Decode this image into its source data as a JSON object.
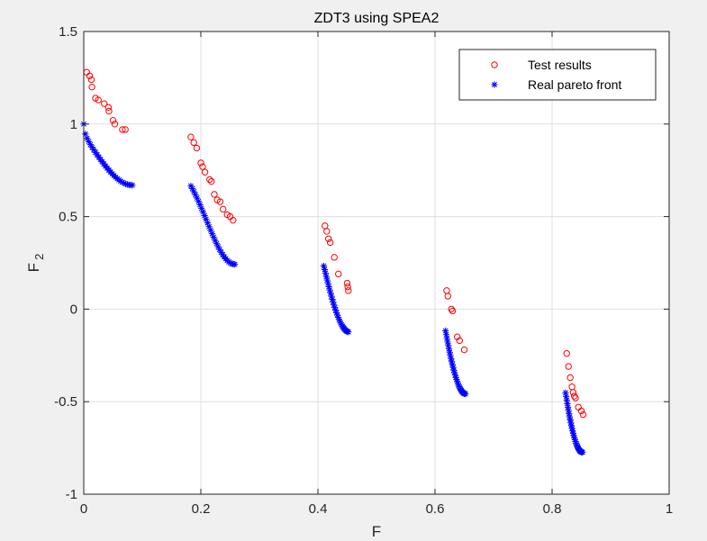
{
  "chart_data": {
    "type": "scatter",
    "title": "ZDT3 using SPEA2",
    "xlabel": "F",
    "ylabel": "F",
    "ylabel_subscript": "2",
    "xlim": [
      0,
      1
    ],
    "ylim": [
      -1,
      1.5
    ],
    "x_ticks": [
      "0",
      "0.2",
      "0.4",
      "0.6",
      "0.8",
      "1"
    ],
    "y_ticks": [
      "-1",
      "-0.5",
      "0",
      "0.5",
      "1",
      "1.5"
    ],
    "grid": true,
    "legend_position": "top-right",
    "series": [
      {
        "name": "Test results",
        "marker": "circle",
        "color": "#ff0000",
        "points": [
          [
            0.005,
            1.28
          ],
          [
            0.01,
            1.26
          ],
          [
            0.013,
            1.24
          ],
          [
            0.014,
            1.2
          ],
          [
            0.02,
            1.14
          ],
          [
            0.025,
            1.13
          ],
          [
            0.035,
            1.11
          ],
          [
            0.042,
            1.09
          ],
          [
            0.043,
            1.07
          ],
          [
            0.05,
            1.02
          ],
          [
            0.053,
            1.0
          ],
          [
            0.066,
            0.97
          ],
          [
            0.071,
            0.97
          ],
          [
            0.183,
            0.93
          ],
          [
            0.188,
            0.9
          ],
          [
            0.193,
            0.87
          ],
          [
            0.2,
            0.79
          ],
          [
            0.203,
            0.77
          ],
          [
            0.207,
            0.74
          ],
          [
            0.215,
            0.7
          ],
          [
            0.218,
            0.69
          ],
          [
            0.223,
            0.62
          ],
          [
            0.228,
            0.59
          ],
          [
            0.233,
            0.58
          ],
          [
            0.238,
            0.54
          ],
          [
            0.245,
            0.51
          ],
          [
            0.25,
            0.5
          ],
          [
            0.255,
            0.48
          ],
          [
            0.412,
            0.45
          ],
          [
            0.415,
            0.42
          ],
          [
            0.418,
            0.38
          ],
          [
            0.421,
            0.36
          ],
          [
            0.428,
            0.28
          ],
          [
            0.435,
            0.19
          ],
          [
            0.45,
            0.14
          ],
          [
            0.451,
            0.12
          ],
          [
            0.452,
            0.1
          ],
          [
            0.62,
            0.1
          ],
          [
            0.622,
            0.07
          ],
          [
            0.628,
            0.0
          ],
          [
            0.63,
            -0.01
          ],
          [
            0.638,
            -0.15
          ],
          [
            0.642,
            -0.17
          ],
          [
            0.65,
            -0.22
          ],
          [
            0.825,
            -0.24
          ],
          [
            0.828,
            -0.31
          ],
          [
            0.831,
            -0.37
          ],
          [
            0.834,
            -0.42
          ],
          [
            0.836,
            -0.45
          ],
          [
            0.838,
            -0.47
          ],
          [
            0.84,
            -0.48
          ],
          [
            0.845,
            -0.53
          ],
          [
            0.85,
            -0.55
          ],
          [
            0.853,
            -0.57
          ]
        ]
      },
      {
        "name": "Real pareto front",
        "marker": "asterisk",
        "color": "#0000ff",
        "segments": [
          {
            "x_start": 0.0,
            "x_end": 0.083
          },
          {
            "x_start": 0.183,
            "x_end": 0.258
          },
          {
            "x_start": 0.41,
            "x_end": 0.452
          },
          {
            "x_start": 0.618,
            "x_end": 0.652
          },
          {
            "x_start": 0.823,
            "x_end": 0.852
          }
        ],
        "points_per_segment": 30,
        "function": "1 - sqrt(x) - x*sin(10*pi*x)"
      }
    ]
  }
}
